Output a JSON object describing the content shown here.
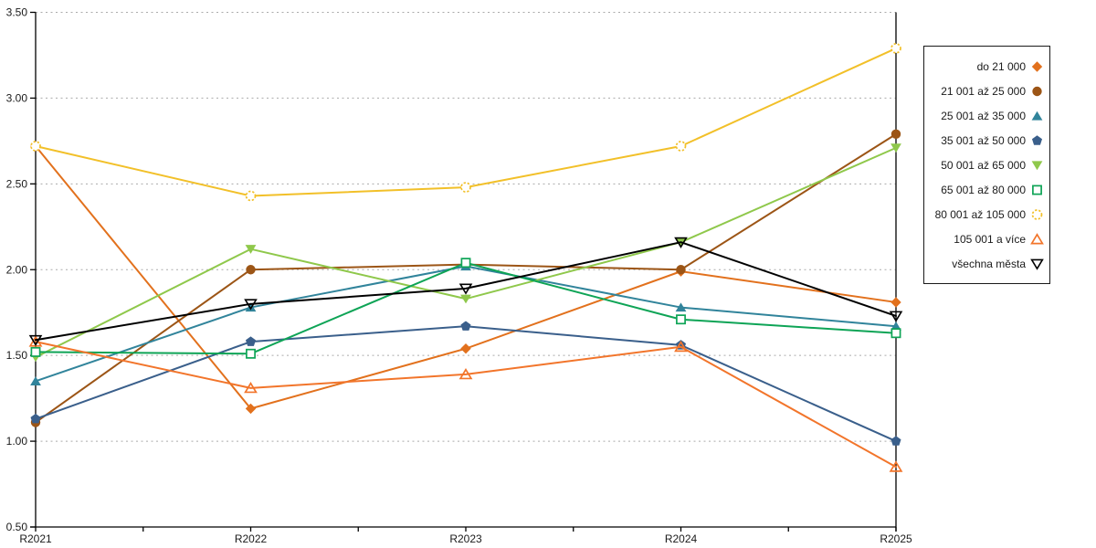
{
  "chart_data": {
    "type": "line",
    "title": "",
    "xlabel": "",
    "ylabel": "",
    "categories": [
      "R2021",
      "R2022",
      "R2023",
      "R2024",
      "R2025"
    ],
    "series": [
      {
        "name": "do 21 000",
        "color": "#E2711D",
        "marker": "diamond",
        "values": [
          2.72,
          1.19,
          1.54,
          1.99,
          1.81
        ]
      },
      {
        "name": "21 001 až 25 000",
        "color": "#9C5516",
        "marker": "circle",
        "values": [
          1.11,
          2.0,
          2.03,
          2.0,
          2.79
        ]
      },
      {
        "name": "25 001 až 35 000",
        "color": "#31849B",
        "marker": "triangle-up",
        "values": [
          1.35,
          1.78,
          2.02,
          1.78,
          1.67
        ]
      },
      {
        "name": "35 001 až 50 000",
        "color": "#3A5F8B",
        "marker": "pentagon",
        "values": [
          1.13,
          1.58,
          1.67,
          1.56,
          1.0
        ]
      },
      {
        "name": "50 001 až 65 000",
        "color": "#8FC84B",
        "marker": "triangle-down",
        "values": [
          1.49,
          2.12,
          1.83,
          2.16,
          2.71
        ]
      },
      {
        "name": "65 001 až 80 000",
        "color": "#0EA456",
        "marker": "square-open",
        "values": [
          1.52,
          1.51,
          2.04,
          1.71,
          1.63
        ]
      },
      {
        "name": "80 001 až 105 000",
        "color": "#F2C029",
        "marker": "circle-open-dashed",
        "values": [
          2.72,
          2.43,
          2.48,
          2.72,
          3.29
        ]
      },
      {
        "name": "105 001 a více",
        "color": "#F2752B",
        "marker": "triangle-up-open",
        "values": [
          1.58,
          1.31,
          1.39,
          1.55,
          0.85
        ]
      },
      {
        "name": "všechna města",
        "color": "#000000",
        "marker": "triangle-down-open",
        "values": [
          1.59,
          1.8,
          1.89,
          2.16,
          1.73
        ]
      }
    ],
    "ylim": [
      0.5,
      3.5
    ],
    "y_ticks": [
      "0.50",
      "1.00",
      "1.50",
      "2.00",
      "2.50",
      "3.00",
      "3.50"
    ],
    "grid": true,
    "grid_style": "dashed",
    "grid_color": "#ABABAB",
    "axis_color": "#000000",
    "legend_position": "right"
  }
}
